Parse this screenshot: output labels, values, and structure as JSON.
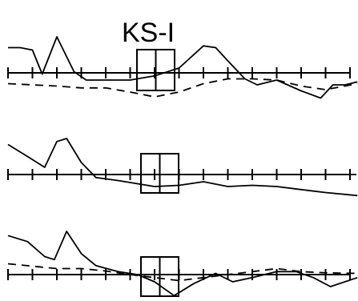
{
  "chart_data": {
    "type": "line",
    "title": "KS-I",
    "x_tick_count": 15,
    "ylim": [
      -1,
      1
    ],
    "panels": [
      {
        "series": [
          {
            "style": "solid",
            "x": [
              0,
              0.5,
              1,
              1.4,
              2,
              2.7,
              3.2,
              4,
              5,
              6,
              7,
              8,
              8.5,
              9,
              9.7,
              10.2,
              11,
              12,
              12.8,
              13.3,
              13.8,
              14.3
            ],
            "y": [
              0.42,
              0.42,
              0.38,
              -0.02,
              0.6,
              0.02,
              -0.12,
              -0.12,
              -0.12,
              -0.05,
              0.08,
              0.45,
              0.42,
              0.2,
              -0.1,
              -0.2,
              -0.12,
              -0.3,
              -0.42,
              -0.2,
              -0.2,
              -0.15
            ]
          },
          {
            "style": "dashed",
            "x": [
              0,
              1,
              2,
              3,
              4,
              5,
              6,
              7,
              8,
              9,
              10,
              11,
              12,
              13,
              14.3
            ],
            "y": [
              -0.18,
              -0.2,
              -0.22,
              -0.25,
              -0.25,
              -0.32,
              -0.4,
              -0.32,
              -0.18,
              -0.1,
              -0.1,
              -0.12,
              -0.22,
              -0.28,
              -0.18
            ]
          }
        ]
      },
      {
        "series": [
          {
            "style": "solid",
            "x": [
              0,
              0.8,
              1.5,
              2,
              2.4,
              3,
              3.6,
              4.5,
              6,
              7,
              8,
              9,
              10,
              11,
              12,
              13,
              14.3
            ],
            "y": [
              0.5,
              0.3,
              0.12,
              0.55,
              0.6,
              0.2,
              -0.05,
              -0.1,
              -0.2,
              -0.18,
              -0.12,
              -0.2,
              -0.18,
              -0.2,
              -0.25,
              -0.3,
              -0.35
            ]
          },
          {
            "style": "dashed",
            "x": [
              0,
              2,
              4,
              6,
              8,
              10,
              12,
              14.3
            ],
            "y": [
              0,
              0,
              0,
              0,
              0,
              0,
              0,
              0
            ]
          }
        ]
      },
      {
        "series": [
          {
            "style": "solid",
            "x": [
              0,
              0.8,
              1.5,
              1.9,
              2.4,
              3,
              3.6,
              4.5,
              5.3,
              6,
              6.8,
              7.6,
              8.5,
              9.2,
              10,
              11,
              11.8,
              12.5,
              13.2,
              14.3
            ],
            "y": [
              0.65,
              0.55,
              0.3,
              0.25,
              0.72,
              0.35,
              0.15,
              0.05,
              0,
              -0.12,
              -0.35,
              -0.15,
              0.02,
              -0.12,
              -0.05,
              0.05,
              0.05,
              -0.05,
              -0.2,
              -0.05
            ]
          },
          {
            "style": "dashed",
            "x": [
              0,
              1,
              2,
              3,
              4,
              5,
              6,
              7,
              8,
              9,
              10,
              11,
              12,
              13,
              14.3
            ],
            "y": [
              0.18,
              0.14,
              0.1,
              0.1,
              0.06,
              0,
              -0.05,
              -0.1,
              -0.05,
              0,
              0.05,
              0.1,
              0.05,
              0.03,
              0.02
            ]
          }
        ]
      }
    ]
  }
}
